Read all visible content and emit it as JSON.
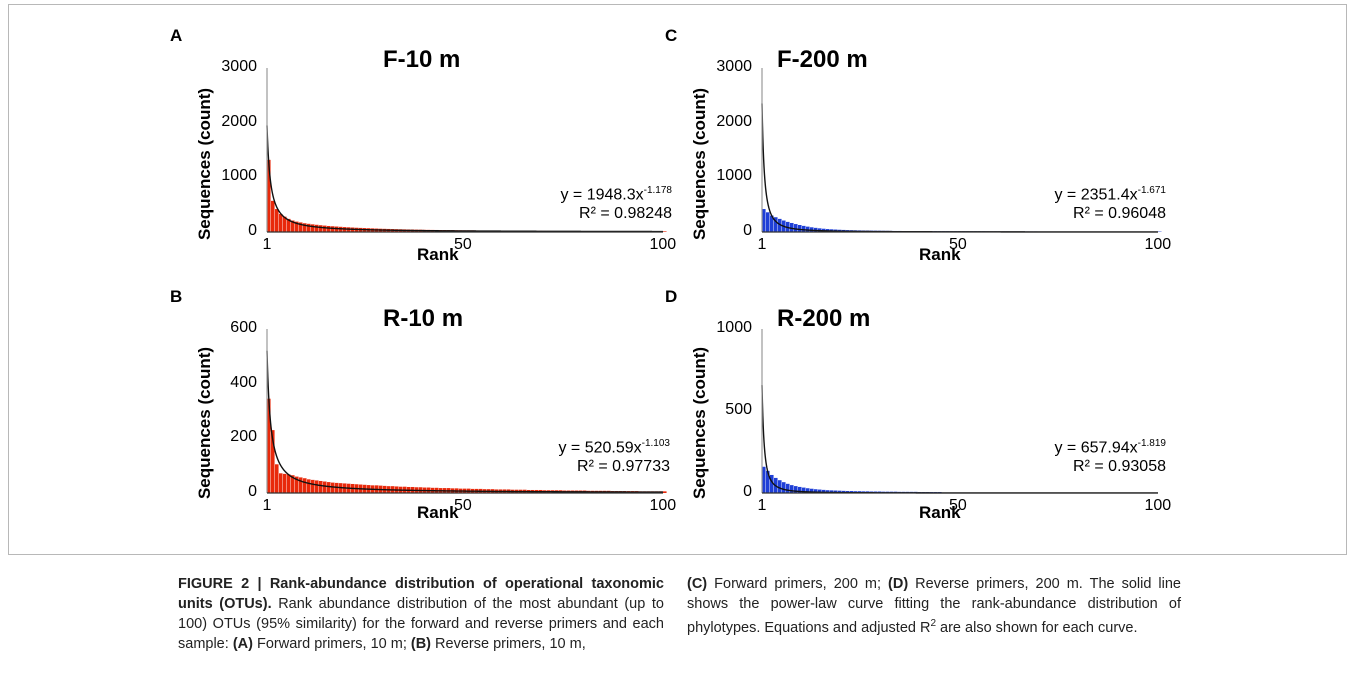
{
  "figure": {
    "caption_title": "FIGURE 2 | Rank-abundance distribution of operational taxonomic units (OTUs).",
    "caption_left": " Rank abundance distribution of the most abundant (up to 100) OTUs (95% similarity) for the forward and reverse primers and each sample: ",
    "caption_A": "(A)",
    "caption_A_text": " Forward primers, 10 m; ",
    "caption_B": "(B)",
    "caption_B_text": " Reverse primers, 10 m,",
    "caption_C": "(C)",
    "caption_C_text": " Forward primers, 200 m; ",
    "caption_D": "(D)",
    "caption_D_text": " Reverse primers, 200 m. The solid line shows the power-law curve fitting the rank-abundance distribution of phylotypes. Equations and adjusted R",
    "caption_sup": "2",
    "caption_end": " are also shown for each curve."
  },
  "colors": {
    "red": "#e8290b",
    "blue": "#1f3fd6",
    "curve": "#111111",
    "axis": "#9a9a9a"
  },
  "chart_data": [
    {
      "panel": "A",
      "title": "F-10 m",
      "type": "bar",
      "xlabel": "Rank",
      "ylabel": "Sequences (count)",
      "xticks": [
        "1",
        "50",
        "100"
      ],
      "yticks": [
        "0",
        "1000",
        "2000",
        "3000"
      ],
      "xlim": [
        1,
        100
      ],
      "ylim": [
        0,
        3000
      ],
      "bar_color": "red",
      "values": [
        1320,
        570,
        420,
        330,
        280,
        240,
        210,
        190,
        175,
        160,
        150,
        140,
        132,
        124,
        117,
        110,
        105,
        100,
        95,
        90,
        86,
        82,
        78,
        75,
        72,
        69,
        66,
        63,
        60,
        58,
        56,
        54,
        52,
        50,
        48,
        46,
        45,
        43,
        42,
        40,
        39,
        38,
        37,
        36,
        35,
        34,
        33,
        32,
        31,
        30,
        30,
        29,
        28,
        27,
        27,
        26,
        25,
        25,
        24,
        24,
        23,
        23,
        22,
        22,
        21,
        21,
        20,
        20,
        20,
        19,
        19,
        18,
        18,
        18,
        17,
        17,
        17,
        16,
        16,
        16,
        16,
        15,
        15,
        15,
        15,
        14,
        14,
        14,
        14,
        13,
        13,
        13,
        13,
        13,
        12,
        12,
        12,
        12,
        12,
        11
      ],
      "fit": {
        "a": 1948.3,
        "b": 1.178
      },
      "equation_base": "y = 1948.3x",
      "equation_exp": "-1.178",
      "r2": "R² = 0.98248"
    },
    {
      "panel": "B",
      "title": "R-10 m",
      "type": "bar",
      "xlabel": "Rank",
      "ylabel": "Sequences (count)",
      "xticks": [
        "1",
        "50",
        "100"
      ],
      "yticks": [
        "0",
        "200",
        "400",
        "600"
      ],
      "xlim": [
        1,
        100
      ],
      "ylim": [
        0,
        600
      ],
      "bar_color": "red",
      "values": [
        345,
        230,
        105,
        72,
        70,
        68,
        65,
        60,
        57,
        54,
        50,
        48,
        46,
        44,
        42,
        40,
        38,
        37,
        36,
        35,
        34,
        33,
        32,
        31,
        30,
        29,
        28,
        28,
        27,
        26,
        25,
        25,
        24,
        23,
        23,
        22,
        22,
        21,
        21,
        20,
        20,
        19,
        19,
        18,
        18,
        18,
        17,
        17,
        16,
        16,
        16,
        15,
        15,
        15,
        14,
        14,
        14,
        13,
        13,
        13,
        13,
        12,
        12,
        12,
        12,
        11,
        11,
        11,
        11,
        10,
        10,
        10,
        10,
        10,
        9,
        9,
        9,
        9,
        9,
        9,
        8,
        8,
        8,
        8,
        8,
        8,
        7,
        7,
        7,
        7,
        7,
        7,
        7,
        6,
        6,
        6,
        6,
        6,
        6,
        6
      ],
      "fit": {
        "a": 520.59,
        "b": 1.103
      },
      "equation_base": "y = 520.59x",
      "equation_exp": "-1.103",
      "r2": "R² = 0.97733"
    },
    {
      "panel": "C",
      "title": "F-200 m",
      "type": "bar",
      "xlabel": "Rank",
      "ylabel": "Sequences (count)",
      "xticks": [
        "1",
        "50",
        "100"
      ],
      "yticks": [
        "0",
        "1000",
        "2000",
        "3000"
      ],
      "xlim": [
        1,
        100
      ],
      "ylim": [
        0,
        3000
      ],
      "bar_color": "blue",
      "values": [
        420,
        360,
        300,
        270,
        240,
        210,
        185,
        165,
        145,
        128,
        112,
        98,
        86,
        76,
        67,
        60,
        54,
        49,
        45,
        41,
        38,
        35,
        33,
        31,
        29,
        27,
        26,
        25,
        24,
        23,
        22,
        21,
        20,
        19,
        19,
        18,
        18,
        17,
        17,
        16,
        16,
        15,
        15,
        15,
        14,
        14,
        14,
        13,
        13,
        13,
        13,
        12,
        12,
        12,
        12,
        12,
        11,
        11,
        11,
        11,
        11,
        11,
        10,
        10,
        10,
        10,
        10,
        10,
        10,
        9,
        9,
        9,
        9,
        9,
        9,
        9,
        9,
        9,
        8,
        8,
        8,
        8,
        8,
        8,
        8,
        8,
        8,
        8,
        7,
        7,
        7,
        7,
        7,
        7,
        7,
        7,
        7,
        7,
        7,
        7
      ],
      "fit": {
        "a": 2351.4,
        "b": 1.671
      },
      "equation_base": "y = 2351.4x",
      "equation_exp": "-1.671",
      "r2": "R² = 0.96048"
    },
    {
      "panel": "D",
      "title": "R-200 m",
      "type": "bar",
      "xlabel": "Rank",
      "ylabel": "Sequences (count)",
      "xticks": [
        "1",
        "50",
        "100"
      ],
      "yticks": [
        "0",
        "500",
        "1000"
      ],
      "xlim": [
        1,
        100
      ],
      "ylim": [
        0,
        1000
      ],
      "bar_color": "blue",
      "values": [
        160,
        135,
        110,
        92,
        78,
        66,
        56,
        48,
        42,
        37,
        33,
        29,
        26,
        23,
        21,
        19,
        17,
        16,
        15,
        14,
        13,
        12,
        12,
        11,
        11,
        10,
        10,
        9,
        9,
        9,
        8,
        8,
        8,
        8,
        7,
        7,
        7,
        7,
        7,
        6,
        6,
        6,
        6,
        6,
        6
      ],
      "fit": {
        "a": 657.94,
        "b": 1.819
      },
      "equation_base": "y = 657.94x",
      "equation_exp": "-1.819",
      "r2": "R² = 0.93058"
    }
  ]
}
